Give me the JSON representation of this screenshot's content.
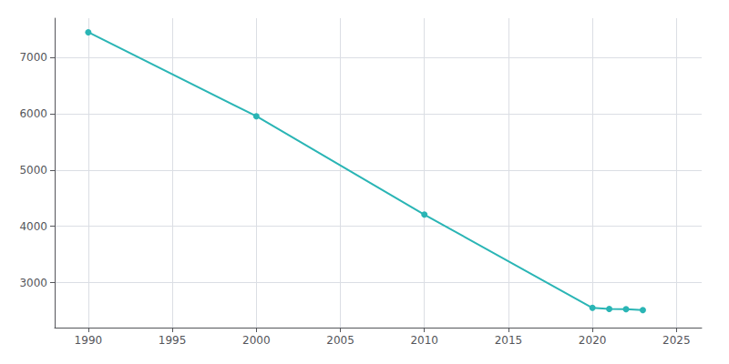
{
  "chart_data": {
    "type": "line",
    "x": [
      1990,
      2000,
      2010,
      2020,
      2021,
      2022,
      2023
    ],
    "values": [
      7450,
      5958,
      4209,
      2551,
      2533,
      2527,
      2512
    ],
    "color": "#2ab5b5",
    "marker": "circle",
    "xlim": [
      1988.0,
      2026.5
    ],
    "ylim": [
      2200,
      7700
    ],
    "xticks": [
      1990,
      1995,
      2000,
      2005,
      2010,
      2015,
      2020,
      2025
    ],
    "yticks": [
      3000,
      4000,
      5000,
      6000,
      7000
    ],
    "grid": true
  }
}
